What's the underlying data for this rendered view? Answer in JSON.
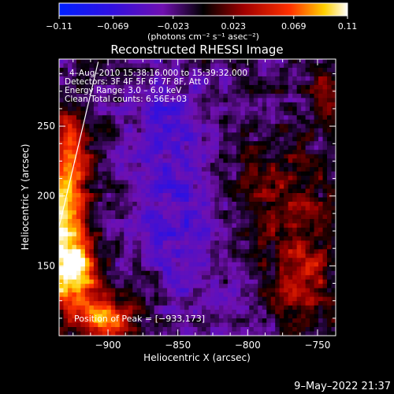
{
  "chart_data": {
    "type": "heatmap",
    "title": "Reconstructed RHESSI Image",
    "xlabel": "Heliocentric X (arcsec)",
    "ylabel": "Heliocentric Y (arcsec)",
    "xlim": [
      -935,
      -737
    ],
    "ylim": [
      100,
      298
    ],
    "x_ticks": [
      -900,
      -850,
      -800,
      -750
    ],
    "x_tick_labels": [
      "−900",
      "−850",
      "−800",
      "−750"
    ],
    "y_ticks": [
      150,
      200,
      250
    ],
    "y_tick_labels": [
      "150",
      "200",
      "250"
    ],
    "colorbar": {
      "range": [
        -0.11,
        0.11
      ],
      "ticks": [
        -0.11,
        -0.069,
        -0.023,
        0.023,
        0.069,
        0.11
      ],
      "tick_labels": [
        "−0.11",
        "−0.069",
        "−0.023",
        "0.023",
        "0.069",
        "0.11"
      ],
      "unit_label": "(photons cm⁻² s⁻¹ asec⁻²)"
    },
    "info_lines": [
      "4–Aug–2010 15:38:16.000 to 15:39:32.000",
      "Detectors: 3F 4F 5F 6F 7F 8F, Att 0",
      "Energy Range: 3.0 – 6.0 keV",
      "Clean     Total counts: 6.56E+03"
    ],
    "peak_label": "Position of Peak = [−933,173]",
    "peak": [
      -933,
      173
    ],
    "limb_line": [
      [
        -935,
        178
      ],
      [
        -907,
        296
      ]
    ],
    "sources": [
      {
        "x": -932,
        "y": 176,
        "amp": 0.11,
        "sx": 12,
        "sy": 40
      },
      {
        "x": -922,
        "y": 145,
        "amp": 0.08,
        "sx": 12,
        "sy": 14
      },
      {
        "x": -902,
        "y": 112,
        "amp": 0.1,
        "sx": 14,
        "sy": 11
      },
      {
        "x": -928,
        "y": 232,
        "amp": 0.05,
        "sx": 10,
        "sy": 22
      },
      {
        "x": -778,
        "y": 205,
        "amp": 0.035,
        "sx": 26,
        "sy": 30
      },
      {
        "x": -758,
        "y": 140,
        "amp": 0.05,
        "sx": 16,
        "sy": 26
      },
      {
        "x": -742,
        "y": 275,
        "amp": 0.04,
        "sx": 10,
        "sy": 18
      },
      {
        "x": -872,
        "y": 130,
        "amp": 0.02,
        "sx": 10,
        "sy": 10
      },
      {
        "x": -850,
        "y": 185,
        "amp": -0.035,
        "sx": 22,
        "sy": 45
      },
      {
        "x": -860,
        "y": 260,
        "amp": -0.03,
        "sx": 18,
        "sy": 18
      }
    ]
  },
  "footer": {
    "timestamp": "9–May–2022 21:37"
  }
}
